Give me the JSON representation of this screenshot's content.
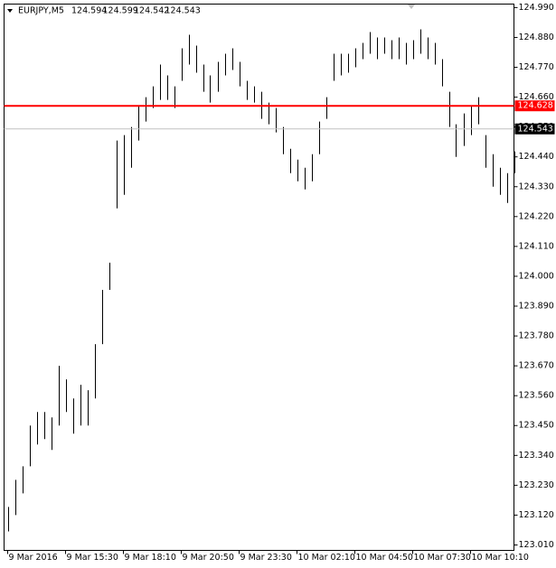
{
  "chart_data": {
    "type": "range-bar",
    "symbol": "EURJPY,M5",
    "quote": [
      124.594,
      124.599,
      124.542,
      124.543
    ],
    "color": "#000000",
    "low": [
      123.06,
      123.12,
      123.2,
      123.3,
      123.38,
      123.4,
      123.36,
      123.45,
      123.5,
      123.42,
      123.45,
      123.45,
      123.55,
      123.75,
      123.95,
      124.25,
      124.3,
      124.4,
      124.5,
      124.57,
      124.62,
      124.65,
      124.65,
      124.62,
      124.72,
      124.78,
      124.75,
      124.68,
      124.64,
      124.68,
      124.74,
      124.76,
      124.7,
      124.65,
      124.64,
      124.58,
      124.56,
      124.53,
      124.45,
      124.38,
      124.35,
      124.32,
      124.35,
      124.45,
      124.58,
      124.72,
      124.74,
      124.75,
      124.77,
      124.8,
      124.82,
      124.8,
      124.82,
      124.8,
      124.8,
      124.78,
      124.8,
      124.82,
      124.8,
      124.78,
      124.7,
      124.55,
      124.44,
      124.48,
      124.52,
      124.56,
      124.4,
      124.33,
      124.3,
      124.27,
      124.38
    ],
    "high": [
      123.15,
      123.25,
      123.3,
      123.45,
      123.5,
      123.5,
      123.48,
      123.67,
      123.62,
      123.55,
      123.6,
      123.58,
      123.75,
      123.95,
      124.05,
      124.5,
      124.52,
      124.55,
      124.63,
      124.66,
      124.7,
      124.78,
      124.74,
      124.7,
      124.84,
      124.89,
      124.85,
      124.78,
      124.74,
      124.79,
      124.82,
      124.84,
      124.79,
      124.72,
      124.7,
      124.68,
      124.64,
      124.62,
      124.55,
      124.47,
      124.43,
      124.4,
      124.45,
      124.57,
      124.66,
      124.82,
      124.82,
      124.82,
      124.84,
      124.86,
      124.9,
      124.88,
      124.88,
      124.87,
      124.88,
      124.86,
      124.87,
      124.91,
      124.88,
      124.86,
      124.8,
      124.68,
      124.56,
      124.6,
      124.63,
      124.66,
      124.52,
      124.45,
      124.4,
      124.38,
      124.46
    ],
    "xlim": [
      -0.5,
      70
    ],
    "xticks": [
      {
        "value": 0,
        "label": "9 Mar 2016"
      },
      {
        "value": 8,
        "label": "9 Mar 15:30"
      },
      {
        "value": 16,
        "label": "9 Mar 18:10"
      },
      {
        "value": 24,
        "label": "9 Mar 20:50"
      },
      {
        "value": 32,
        "label": "9 Mar 23:30"
      },
      {
        "value": 40,
        "label": "10 Mar 02:10"
      },
      {
        "value": 48,
        "label": "10 Mar 04:50"
      },
      {
        "value": 56,
        "label": "10 Mar 07:30"
      },
      {
        "value": 64,
        "label": "10 Mar 10:10"
      }
    ],
    "ylim": [
      122.99,
      125.003
    ],
    "yticks": [
      {
        "value": 123.01,
        "label": "123.010"
      },
      {
        "value": 123.12,
        "label": "123.120"
      },
      {
        "value": 123.23,
        "label": "123.230"
      },
      {
        "value": 123.34,
        "label": "123.340"
      },
      {
        "value": 123.45,
        "label": "123.450"
      },
      {
        "value": 123.56,
        "label": "123.560"
      },
      {
        "value": 123.67,
        "label": "123.670"
      },
      {
        "value": 123.78,
        "label": "123.780"
      },
      {
        "value": 123.89,
        "label": "123.890"
      },
      {
        "value": 124.0,
        "label": "124.000"
      },
      {
        "value": 124.11,
        "label": "124.110"
      },
      {
        "value": 124.22,
        "label": "124.220"
      },
      {
        "value": 124.33,
        "label": "124.330"
      },
      {
        "value": 124.44,
        "label": "124.440"
      },
      {
        "value": 124.55,
        "label": "124.550"
      },
      {
        "value": 124.66,
        "label": "124.660"
      },
      {
        "value": 124.77,
        "label": "124.770"
      },
      {
        "value": 124.88,
        "label": "124.880"
      },
      {
        "value": 124.99,
        "label": "124.990"
      }
    ],
    "price_lines": [
      {
        "value": 124.628,
        "color": "#ff0000"
      },
      {
        "value": 124.543,
        "color": "#c0c0c0"
      }
    ]
  }
}
